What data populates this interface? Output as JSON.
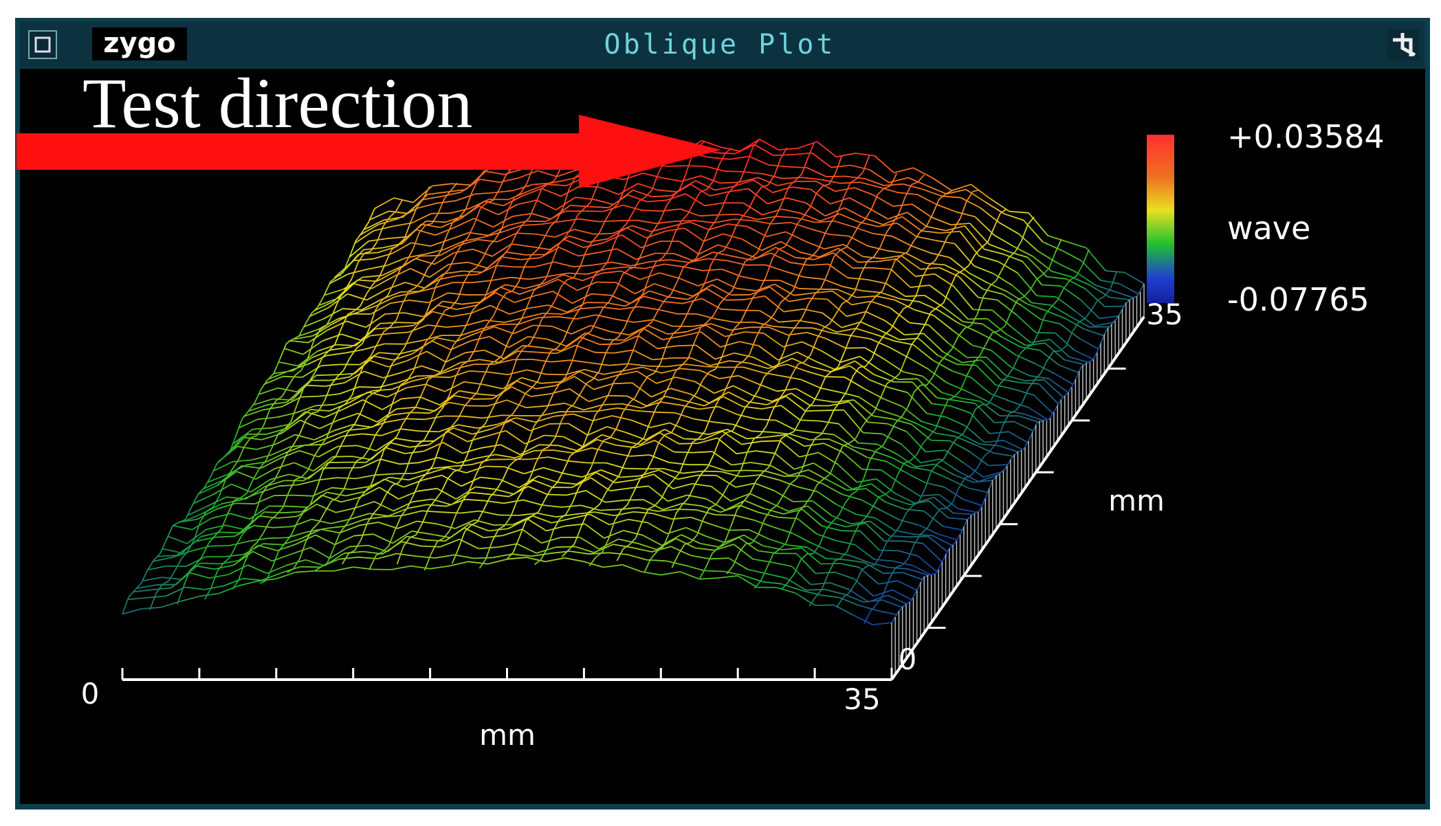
{
  "window": {
    "logo": "zygo",
    "title": "Oblique Plot"
  },
  "annotation": "Test direction",
  "colorbar": {
    "max": "+0.03584",
    "unit": "wave",
    "min": "-0.07765"
  },
  "x_axis": {
    "start": "0",
    "end": "35",
    "unit": "mm"
  },
  "y_axis": {
    "start": "0",
    "end": "35",
    "unit": "mm"
  }
}
